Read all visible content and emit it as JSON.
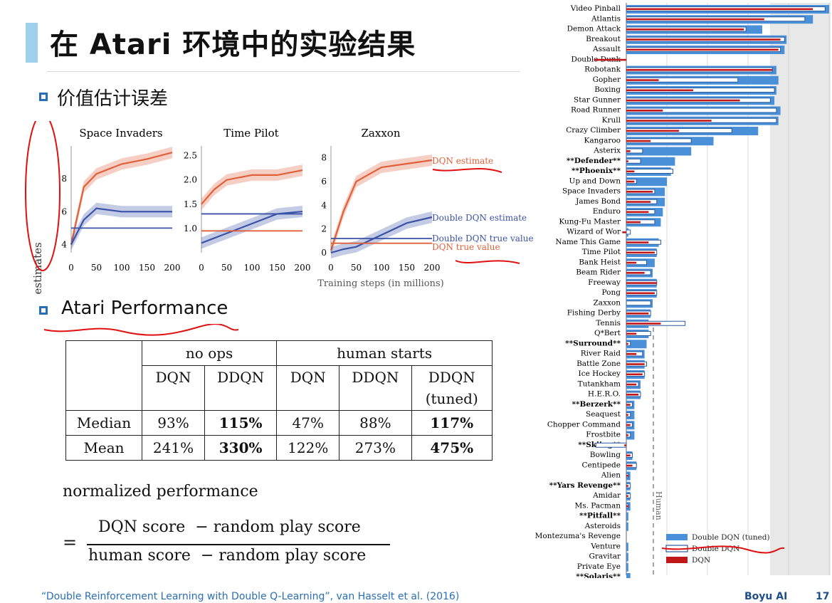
{
  "title": "在 Atari 环境中的实验结果",
  "sections": {
    "value_error": "价值估计误差",
    "atari_perf": "Atari Performance"
  },
  "value_plots": {
    "ylabel": "Value estimates",
    "xlabel": "Training steps (in millions)",
    "xticks": [
      "0",
      "50",
      "100",
      "150",
      "200"
    ],
    "panels": [
      {
        "title": "Space Invaders",
        "yticks": [
          "4",
          "6",
          "8"
        ]
      },
      {
        "title": "Time Pilot",
        "yticks": [
          "1.0",
          "1.5",
          "2.0",
          "2.5"
        ]
      },
      {
        "title": "Zaxxon",
        "yticks": [
          "0",
          "2",
          "4",
          "6",
          "8"
        ]
      }
    ],
    "legend": {
      "dqn_estimate": "DQN estimate",
      "ddqn_estimate": "Double DQN estimate",
      "ddqn_true": "Double DQN true value",
      "dqn_true": "DQN true value"
    },
    "colors": {
      "dqn": "#e0603a",
      "ddqn": "#3a52a8"
    }
  },
  "table": {
    "group_no_ops": "no ops",
    "group_human": "human starts",
    "headers": [
      "DQN",
      "DDQN",
      "DQN",
      "DDQN",
      "DDQN (tuned)"
    ],
    "header_tuned_line1": "DDQN",
    "header_tuned_line2": "(tuned)",
    "rows": [
      {
        "label": "Median",
        "cells": [
          "93%",
          "115%",
          "47%",
          "88%",
          "117%"
        ]
      },
      {
        "label": "Mean",
        "cells": [
          "241%",
          "330%",
          "122%",
          "273%",
          "475%"
        ]
      }
    ]
  },
  "formula": {
    "label": "normalized performance",
    "eq": "=",
    "numerator": "DQN score  − random play score",
    "denominator": "human score  − random play score"
  },
  "footer": {
    "citation": "“Double Reinforcement Learning with Double Q-Learning”, van Hasselt et al. (2016)",
    "brand": "Boyu AI",
    "page": "17"
  },
  "bar_chart": {
    "human_label": "Human",
    "legend": [
      "Double DQN (tuned)",
      "Double DQN",
      "DQN"
    ],
    "colors": {
      "tuned": "#4a90d9",
      "ddqn": "#ffffff",
      "dqn": "#c01818",
      "human_line": "#888888"
    },
    "games": [
      {
        "name": "Video Pinball",
        "tuned": 100,
        "ddqn": 98,
        "dqn": 92,
        "bold": false
      },
      {
        "name": "Atlantis",
        "tuned": 92,
        "ddqn": 88,
        "dqn": 68,
        "bold": false
      },
      {
        "name": "Demon Attack",
        "tuned": 67,
        "ddqn": 59,
        "dqn": 58,
        "bold": false
      },
      {
        "name": "Breakout",
        "tuned": 79,
        "ddqn": 78,
        "dqn": 76,
        "bold": false
      },
      {
        "name": "Assault",
        "tuned": 78,
        "ddqn": 76,
        "dqn": 75,
        "bold": false
      },
      {
        "name": "Double Dunk",
        "tuned": 0,
        "ddqn": 0,
        "dqn": -16,
        "bold": false
      },
      {
        "name": "Robotank",
        "tuned": 74,
        "ddqn": 72,
        "dqn": 72,
        "bold": false
      },
      {
        "name": "Gopher",
        "tuned": 75,
        "ddqn": 55,
        "dqn": 16,
        "bold": false
      },
      {
        "name": "Boxing",
        "tuned": 74,
        "ddqn": 73,
        "dqn": 33,
        "bold": false
      },
      {
        "name": "Star Gunner",
        "tuned": 73,
        "ddqn": 71,
        "dqn": 56,
        "bold": false
      },
      {
        "name": "Road Runner",
        "tuned": 76,
        "ddqn": 74,
        "dqn": 18,
        "bold": false
      },
      {
        "name": "Krull",
        "tuned": 75,
        "ddqn": 74,
        "dqn": 42,
        "bold": false
      },
      {
        "name": "Crazy Climber",
        "tuned": 65,
        "ddqn": 52,
        "dqn": 26,
        "bold": false
      },
      {
        "name": "Kangaroo",
        "tuned": 43,
        "ddqn": 32,
        "dqn": 12,
        "bold": false
      },
      {
        "name": "Asterix",
        "tuned": 32,
        "ddqn": 8,
        "dqn": 2,
        "bold": false
      },
      {
        "name": "**Defender**",
        "tuned": 24,
        "ddqn": 7,
        "dqn": 1,
        "bold": true
      },
      {
        "name": "**Phoenix**",
        "tuned": 22,
        "ddqn": 23,
        "dqn": 4,
        "bold": true
      },
      {
        "name": "Up and Down",
        "tuned": 20,
        "ddqn": 5,
        "dqn": 4,
        "bold": false
      },
      {
        "name": "Space Invaders",
        "tuned": 19,
        "ddqn": 14,
        "dqn": 13,
        "bold": false
      },
      {
        "name": "James Bond",
        "tuned": 19,
        "ddqn": 15,
        "dqn": 12,
        "bold": false
      },
      {
        "name": "Enduro",
        "tuned": 18,
        "ddqn": 14,
        "dqn": 11,
        "bold": false
      },
      {
        "name": "Kung-Fu Master",
        "tuned": 17,
        "ddqn": 14,
        "dqn": 7,
        "bold": false
      },
      {
        "name": "Wizard of Wor",
        "tuned": 1,
        "ddqn": 2,
        "dqn": -2,
        "bold": false
      },
      {
        "name": "Name This Game",
        "tuned": 16,
        "ddqn": 17,
        "dqn": 11,
        "bold": false
      },
      {
        "name": "Time Pilot",
        "tuned": 15,
        "ddqn": 15,
        "dqn": 14,
        "bold": false
      },
      {
        "name": "Bank Heist",
        "tuned": 14,
        "ddqn": 10,
        "dqn": 5,
        "bold": false
      },
      {
        "name": "Beam Rider",
        "tuned": 13,
        "ddqn": 12,
        "dqn": 9,
        "bold": false
      },
      {
        "name": "Freeway",
        "tuned": 15,
        "ddqn": 15,
        "dqn": 15,
        "bold": false
      },
      {
        "name": "Pong",
        "tuned": 15,
        "ddqn": 15,
        "dqn": 14,
        "bold": false
      },
      {
        "name": "Zaxxon",
        "tuned": 13,
        "ddqn": 12,
        "dqn": 0,
        "bold": false
      },
      {
        "name": "Fishing Derby",
        "tuned": 12,
        "ddqn": 12,
        "dqn": 11,
        "bold": false
      },
      {
        "name": "Tennis",
        "tuned": 11,
        "ddqn": 29,
        "dqn": 17,
        "bold": false
      },
      {
        "name": "Q*Bert",
        "tuned": 11,
        "ddqn": 12,
        "dqn": 5,
        "bold": false
      },
      {
        "name": "**Surround**",
        "tuned": 10,
        "ddqn": 2,
        "dqn": 1,
        "bold": true
      },
      {
        "name": "River Raid",
        "tuned": 9,
        "ddqn": 8,
        "dqn": 5,
        "bold": false
      },
      {
        "name": "Battle Zone",
        "tuned": 9,
        "ddqn": 10,
        "dqn": 9,
        "bold": false
      },
      {
        "name": "Ice Hockey",
        "tuned": 9,
        "ddqn": 9,
        "dqn": 8,
        "bold": false
      },
      {
        "name": "Tutankham",
        "tuned": 7,
        "ddqn": 6,
        "dqn": 5,
        "bold": false
      },
      {
        "name": "H.E.R.O.",
        "tuned": 7,
        "ddqn": 7,
        "dqn": 6,
        "bold": false
      },
      {
        "name": "**Berzerk**",
        "tuned": 4,
        "ddqn": 3,
        "dqn": 2,
        "bold": true
      },
      {
        "name": "Seaquest",
        "tuned": 4,
        "ddqn": 2,
        "dqn": 1,
        "bold": false
      },
      {
        "name": "Chopper Command",
        "tuned": 4,
        "ddqn": 3,
        "dqn": 2,
        "bold": false
      },
      {
        "name": "Frostbite",
        "tuned": 4,
        "ddqn": 2,
        "dqn": 1,
        "bold": false
      },
      {
        "name": "**Skiing**",
        "tuned": 0,
        "ddqn": -15,
        "dqn": -1,
        "bold": true
      },
      {
        "name": "Bowling",
        "tuned": 3,
        "ddqn": 3,
        "dqn": 2,
        "bold": false
      },
      {
        "name": "Centipede",
        "tuned": 5,
        "ddqn": 5,
        "dqn": 3,
        "bold": false
      },
      {
        "name": "Alien",
        "tuned": 2,
        "ddqn": 1,
        "dqn": 1,
        "bold": false
      },
      {
        "name": "**Yars Revenge**",
        "tuned": 2,
        "ddqn": 2,
        "dqn": 1,
        "bold": true
      },
      {
        "name": "Amidar",
        "tuned": 2,
        "ddqn": 2,
        "dqn": 1,
        "bold": false
      },
      {
        "name": "Ms. Pacman",
        "tuned": 2,
        "ddqn": 1,
        "dqn": 1,
        "bold": false
      },
      {
        "name": "**Pitfall**",
        "tuned": 1,
        "ddqn": 0,
        "dqn": 0,
        "bold": true
      },
      {
        "name": "Asteroids",
        "tuned": 1,
        "ddqn": 0,
        "dqn": 0,
        "bold": false
      },
      {
        "name": "Montezuma's Revenge",
        "tuned": 0,
        "ddqn": 0,
        "dqn": 0,
        "bold": false
      },
      {
        "name": "Venture",
        "tuned": 1,
        "ddqn": 0,
        "dqn": 0,
        "bold": false
      },
      {
        "name": "Gravitar",
        "tuned": 1,
        "ddqn": 0,
        "dqn": 0,
        "bold": false
      },
      {
        "name": "Private Eye",
        "tuned": 1,
        "ddqn": 0,
        "dqn": 0,
        "bold": false
      },
      {
        "name": "**Solaris**",
        "tuned": 2,
        "ddqn": 0,
        "dqn": 0,
        "bold": true
      }
    ]
  },
  "chart_data": [
    {
      "type": "line",
      "title": "Space Invaders",
      "xlabel": "Training steps (in millions)",
      "ylabel": "Value estimates",
      "x": [
        0,
        25,
        50,
        100,
        150,
        200
      ],
      "ylim": [
        3.5,
        10
      ],
      "series": [
        {
          "name": "DQN estimate",
          "values": [
            4,
            7.5,
            8.3,
            8.9,
            9.2,
            9.6
          ]
        },
        {
          "name": "Double DQN estimate",
          "values": [
            4,
            5.5,
            6.2,
            6.0,
            6.0,
            6.0
          ]
        },
        {
          "name": "Double DQN true value",
          "values": [
            5,
            5,
            5,
            5,
            5,
            5
          ]
        }
      ]
    },
    {
      "type": "line",
      "title": "Time Pilot",
      "xlabel": "Training steps (in millions)",
      "x": [
        0,
        25,
        50,
        100,
        150,
        200
      ],
      "ylim": [
        0.5,
        2.7
      ],
      "series": [
        {
          "name": "DQN estimate",
          "values": [
            1.5,
            1.8,
            2.0,
            2.1,
            2.1,
            2.2
          ]
        },
        {
          "name": "Double DQN estimate",
          "values": [
            0.7,
            0.8,
            0.9,
            1.1,
            1.3,
            1.35
          ]
        },
        {
          "name": "Double DQN true value",
          "values": [
            1.3,
            1.3,
            1.3,
            1.3,
            1.3,
            1.3
          ]
        },
        {
          "name": "DQN true value",
          "values": [
            0.95,
            0.95,
            0.95,
            0.95,
            0.95,
            0.95
          ]
        }
      ]
    },
    {
      "type": "line",
      "title": "Zaxxon",
      "xlabel": "Training steps (in millions)",
      "x": [
        0,
        25,
        50,
        100,
        150,
        200
      ],
      "ylim": [
        0,
        9
      ],
      "series": [
        {
          "name": "DQN estimate",
          "values": [
            0.2,
            3.5,
            6.0,
            7.2,
            7.5,
            7.8
          ]
        },
        {
          "name": "Double DQN estimate",
          "values": [
            0,
            0.3,
            0.5,
            1.5,
            2.5,
            3.0
          ]
        },
        {
          "name": "Double DQN true value",
          "values": [
            1.2,
            1.2,
            1.2,
            1.2,
            1.2,
            1.2
          ]
        },
        {
          "name": "DQN true value",
          "values": [
            0.8,
            0.8,
            0.8,
            0.8,
            0.8,
            0.8
          ]
        }
      ]
    }
  ]
}
